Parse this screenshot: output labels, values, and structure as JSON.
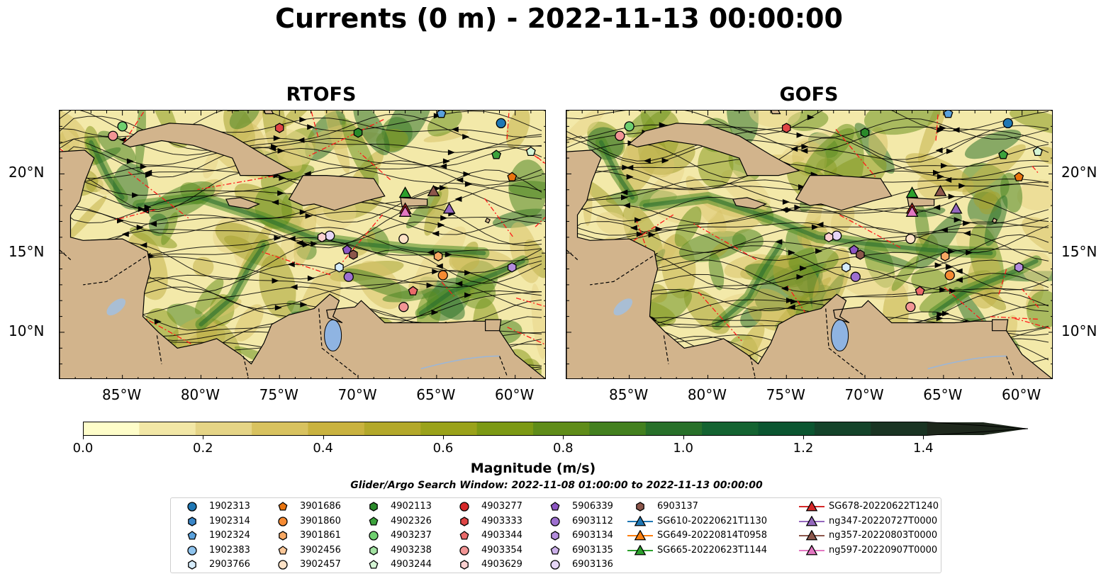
{
  "title": "Currents (0 m) - 2022-11-13 00:00:00",
  "panels": [
    {
      "title": "RTOFS"
    },
    {
      "title": "GOFS"
    }
  ],
  "axes": {
    "x_labels": [
      "85°W",
      "80°W",
      "75°W",
      "70°W",
      "65°W",
      "60°W"
    ],
    "y_labels": [
      "20°N",
      "15°N",
      "10°N"
    ]
  },
  "colorbar": {
    "title": "Magnitude (m/s)",
    "tick_labels": [
      "0.0",
      "0.2",
      "0.4",
      "0.6",
      "0.8",
      "1.0",
      "1.2",
      "1.4"
    ],
    "range": [
      0.0,
      1.5
    ],
    "colors": [
      "#fefdc9",
      "#f2e7a6",
      "#e5d486",
      "#d8c25f",
      "#c9b23f",
      "#b3a82a",
      "#9aa21a",
      "#7c9914",
      "#5f8c19",
      "#43801f",
      "#28702a",
      "#146331",
      "#0b5530",
      "#14432a",
      "#1a3423",
      "#1e281c"
    ],
    "extend": "max"
  },
  "search_window": "Glider/Argo Search Window: 2022-11-08 01:00:00 to 2022-11-13 00:00:00",
  "legend": {
    "items": [
      {
        "label": "1902313",
        "marker": "circle",
        "color": "#1f77b4"
      },
      {
        "label": "1902314",
        "marker": "hexagon",
        "color": "#3a86c8"
      },
      {
        "label": "1902324",
        "marker": "pentagon",
        "color": "#5aa1dc"
      },
      {
        "label": "1902383",
        "marker": "circle",
        "color": "#8fc4ee"
      },
      {
        "label": "2903766",
        "marker": "hexagon",
        "color": "#d6ecfb"
      },
      {
        "label": "3901686",
        "marker": "pentagon",
        "color": "#e8740f"
      },
      {
        "label": "3901860",
        "marker": "circle",
        "color": "#f68b33"
      },
      {
        "label": "3901861",
        "marker": "hexagon",
        "color": "#f7a863"
      },
      {
        "label": "3902456",
        "marker": "pentagon",
        "color": "#fbc798"
      },
      {
        "label": "3902457",
        "marker": "circle",
        "color": "#fde2c7"
      },
      {
        "label": "4902113",
        "marker": "hexagon",
        "color": "#2a8a2a"
      },
      {
        "label": "4902326",
        "marker": "pentagon",
        "color": "#3ca23c"
      },
      {
        "label": "4903237",
        "marker": "circle",
        "color": "#6fcf6f"
      },
      {
        "label": "4903238",
        "marker": "hexagon",
        "color": "#a3e3a3"
      },
      {
        "label": "4903244",
        "marker": "pentagon",
        "color": "#d5f5d5"
      },
      {
        "label": "4903277",
        "marker": "circle",
        "color": "#d62728"
      },
      {
        "label": "4903333",
        "marker": "hexagon",
        "color": "#e04545"
      },
      {
        "label": "4903344",
        "marker": "pentagon",
        "color": "#ea6a6a"
      },
      {
        "label": "4903354",
        "marker": "circle",
        "color": "#f29595"
      },
      {
        "label": "4903629",
        "marker": "hexagon",
        "color": "#fbd0d0"
      },
      {
        "label": "5906339",
        "marker": "pentagon",
        "color": "#8c56c2"
      },
      {
        "label": "6903112",
        "marker": "circle",
        "color": "#9d6fcf"
      },
      {
        "label": "6903134",
        "marker": "hexagon",
        "color": "#b48ddd"
      },
      {
        "label": "6903135",
        "marker": "pentagon",
        "color": "#ccb0ea"
      },
      {
        "label": "6903136",
        "marker": "circle",
        "color": "#e6d6f6"
      },
      {
        "label": "6903137",
        "marker": "hexagon",
        "color": "#8c564b"
      },
      {
        "label": "SG610-20220621T1130",
        "marker": "triangle-line",
        "color": "#1f77b4"
      },
      {
        "label": "SG649-20220814T0958",
        "marker": "triangle-line",
        "color": "#ff7f0e"
      },
      {
        "label": "SG665-20220623T1144",
        "marker": "triangle-line",
        "color": "#2ca02c"
      },
      {
        "label": "SG678-20220622T1240",
        "marker": "triangle-line",
        "color": "#d62728"
      },
      {
        "label": "ng347-20220727T0000",
        "marker": "triangle-line",
        "color": "#9467bd"
      },
      {
        "label": "ng357-20220803T0000",
        "marker": "triangle-line",
        "color": "#8c564b"
      },
      {
        "label": "ng597-20220907T0000",
        "marker": "triangle-line",
        "color": "#e377c2"
      }
    ]
  },
  "platform_positions": [
    {
      "label": "1902313",
      "lon": -60.9,
      "lat": 23.2
    },
    {
      "label": "1902324",
      "lon": -64.7,
      "lat": 23.8
    },
    {
      "label": "4903237",
      "lon": -85.0,
      "lat": 23.0
    },
    {
      "label": "4903354",
      "lon": -85.6,
      "lat": 22.4
    },
    {
      "label": "4903333",
      "lon": -75.0,
      "lat": 22.9
    },
    {
      "label": "4902113",
      "lon": -70.0,
      "lat": 22.6
    },
    {
      "label": "4902326",
      "lon": -61.2,
      "lat": 21.2
    },
    {
      "label": "4903244",
      "lon": -59.0,
      "lat": 21.4
    },
    {
      "label": "3901686",
      "lon": -60.2,
      "lat": 19.8
    },
    {
      "label": "SG665-20220623T1144",
      "lon": -67.0,
      "lat": 18.8
    },
    {
      "label": "SG678-20220622T1240",
      "lon": -67.0,
      "lat": 17.8
    },
    {
      "label": "ng597-20220907T0000",
      "lon": -67.0,
      "lat": 17.6
    },
    {
      "label": "ng357-20220803T0000",
      "lon": -65.2,
      "lat": 18.9
    },
    {
      "label": "ng347-20220727T0000",
      "lon": -64.2,
      "lat": 17.8
    },
    {
      "label": "6903136",
      "lon": -71.8,
      "lat": 16.1
    },
    {
      "label": "4903629",
      "lon": -72.3,
      "lat": 16.0
    },
    {
      "label": "3902457",
      "lon": -67.1,
      "lat": 15.9
    },
    {
      "label": "5906339",
      "lon": -70.7,
      "lat": 15.2
    },
    {
      "label": "6903137",
      "lon": -70.3,
      "lat": 14.9
    },
    {
      "label": "3901861",
      "lon": -64.9,
      "lat": 14.8
    },
    {
      "label": "2903766",
      "lon": -71.2,
      "lat": 14.1
    },
    {
      "label": "6903134",
      "lon": -60.2,
      "lat": 14.1
    },
    {
      "label": "3901860",
      "lon": -64.6,
      "lat": 13.6
    },
    {
      "label": "6903112",
      "lon": -70.6,
      "lat": 13.5
    },
    {
      "label": "4903344",
      "lon": -66.5,
      "lat": 12.6
    },
    {
      "label": "4903354",
      "lon": -67.1,
      "lat": 11.6
    }
  ]
}
